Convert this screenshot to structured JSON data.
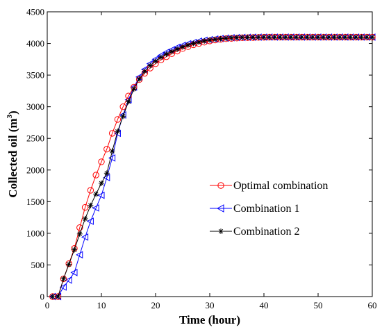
{
  "chart_data": {
    "type": "line",
    "xlabel": "Time (hour)",
    "ylabel": "Collected oil (m",
    "ylabel_superscript": "3",
    "ylabel_suffix": ")",
    "xlim": [
      0,
      60
    ],
    "ylim": [
      0,
      4500
    ],
    "xticks": [
      0,
      10,
      20,
      30,
      40,
      50,
      60
    ],
    "yticks": [
      0,
      500,
      1000,
      1500,
      2000,
      2500,
      3000,
      3500,
      4000,
      4500
    ],
    "grid": false,
    "legend_position": "center-right",
    "x": [
      1,
      2,
      3,
      4,
      5,
      6,
      7,
      8,
      9,
      10,
      11,
      12,
      13,
      14,
      15,
      16,
      17,
      18,
      19,
      20,
      21,
      22,
      23,
      24,
      25,
      26,
      27,
      28,
      29,
      30,
      31,
      32,
      33,
      34,
      35,
      36,
      37,
      38,
      39,
      40,
      41,
      42,
      43,
      44,
      45,
      46,
      47,
      48,
      49,
      50,
      51,
      52,
      53,
      54,
      55,
      56,
      57,
      58,
      59,
      60
    ],
    "series": [
      {
        "name": "Optimal combination",
        "color": "#ff0000",
        "marker": "circle",
        "values": [
          0,
          0,
          280,
          520,
          760,
          1090,
          1410,
          1680,
          1920,
          2130,
          2330,
          2580,
          2800,
          3000,
          3170,
          3310,
          3430,
          3530,
          3610,
          3680,
          3740,
          3790,
          3840,
          3880,
          3920,
          3950,
          3980,
          4000,
          4020,
          4040,
          4055,
          4065,
          4075,
          4080,
          4085,
          4090,
          4092,
          4094,
          4096,
          4098,
          4100,
          4100,
          4100,
          4100,
          4100,
          4100,
          4100,
          4100,
          4100,
          4100,
          4100,
          4100,
          4100,
          4100,
          4100,
          4100,
          4100,
          4100,
          4100,
          4100
        ]
      },
      {
        "name": "Combination 1",
        "color": "#0000ff",
        "marker": "triangle-left",
        "values": [
          0,
          0,
          150,
          260,
          380,
          660,
          940,
          1190,
          1400,
          1600,
          1880,
          2190,
          2580,
          2870,
          3110,
          3310,
          3470,
          3590,
          3680,
          3750,
          3810,
          3860,
          3900,
          3940,
          3970,
          3995,
          4015,
          4035,
          4050,
          4060,
          4070,
          4078,
          4085,
          4090,
          4093,
          4095,
          4097,
          4098,
          4099,
          4100,
          4100,
          4100,
          4100,
          4100,
          4100,
          4100,
          4100,
          4100,
          4100,
          4100,
          4100,
          4100,
          4100,
          4100,
          4100,
          4100,
          4100,
          4100,
          4100,
          4100
        ]
      },
      {
        "name": "Combination 2",
        "color": "#000000",
        "marker": "asterisk",
        "values": [
          0,
          0,
          280,
          510,
          740,
          990,
          1230,
          1440,
          1620,
          1790,
          1950,
          2300,
          2610,
          2850,
          3080,
          3280,
          3440,
          3560,
          3650,
          3720,
          3780,
          3830,
          3870,
          3910,
          3945,
          3975,
          4000,
          4020,
          4040,
          4055,
          4065,
          4075,
          4082,
          4088,
          4092,
          4095,
          4097,
          4098,
          4099,
          4100,
          4100,
          4100,
          4100,
          4100,
          4100,
          4100,
          4100,
          4100,
          4100,
          4100,
          4100,
          4100,
          4100,
          4100,
          4100,
          4100,
          4100,
          4100,
          4100,
          4100
        ]
      }
    ]
  }
}
